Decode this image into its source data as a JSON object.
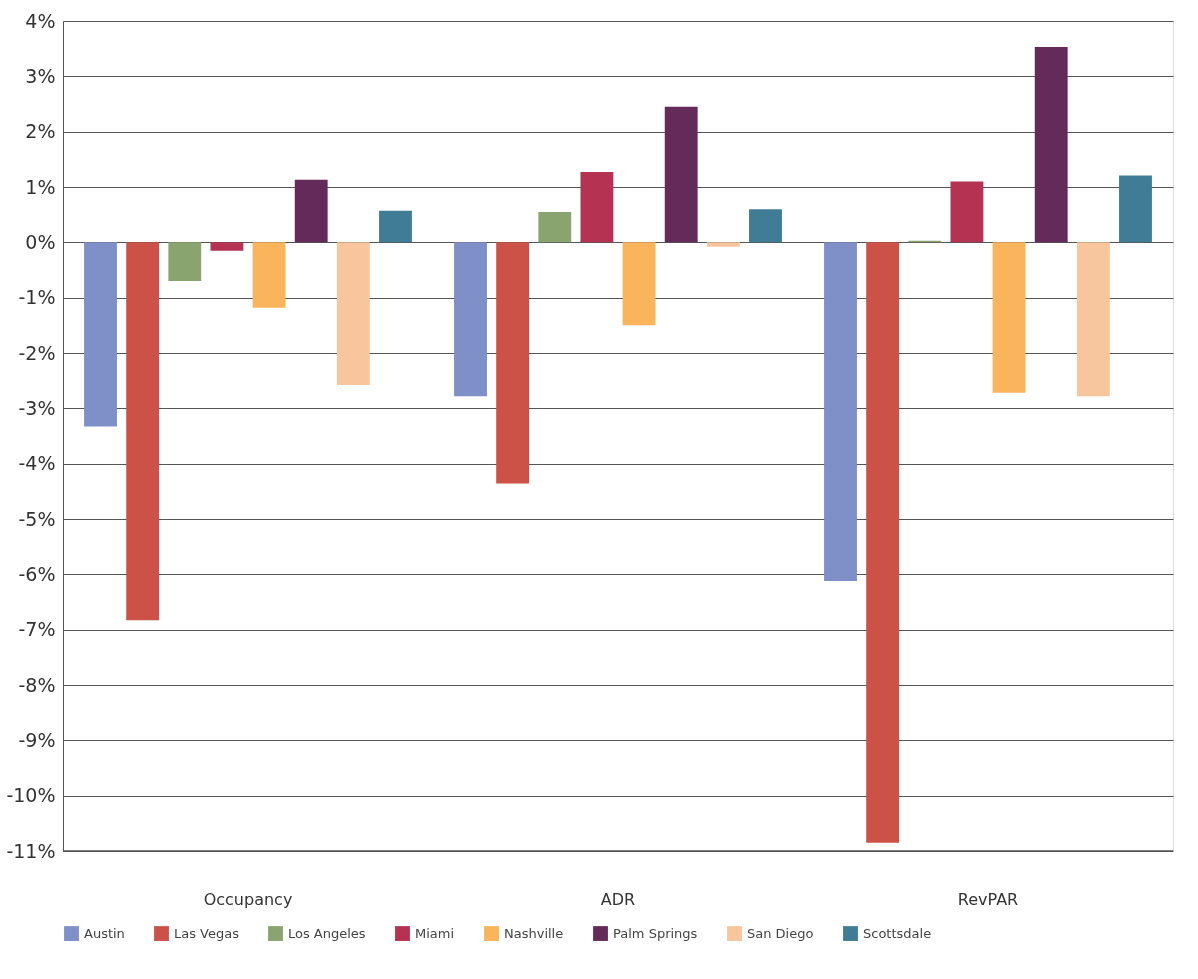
{
  "chart_data": {
    "type": "bar",
    "categories": [
      "Occupancy",
      "ADR",
      "RevPAR"
    ],
    "series": [
      {
        "name": "Austin",
        "color": "#7f8fc7",
        "values": [
          -3.33,
          -2.78,
          -6.12
        ]
      },
      {
        "name": "Las Vegas",
        "color": "#cc5147",
        "values": [
          -6.83,
          -4.36,
          -10.85
        ]
      },
      {
        "name": "Los Angeles",
        "color": "#8aa46f",
        "values": [
          -0.7,
          0.55,
          0.03
        ]
      },
      {
        "name": "Miami",
        "color": "#b53253",
        "values": [
          -0.15,
          1.27,
          1.1
        ]
      },
      {
        "name": "Nashville",
        "color": "#f9b45c",
        "values": [
          -1.18,
          -1.5,
          -2.72
        ]
      },
      {
        "name": "Palm Springs",
        "color": "#642a5a",
        "values": [
          1.13,
          2.45,
          3.53
        ]
      },
      {
        "name": "San Diego",
        "color": "#f8c69c",
        "values": [
          -2.58,
          -0.08,
          -2.78
        ]
      },
      {
        "name": "Scottsdale",
        "color": "#417c97",
        "values": [
          0.57,
          0.6,
          1.21
        ]
      }
    ],
    "ylim": [
      -11,
      4
    ],
    "yticks": [
      {
        "value": 4,
        "label": "4%"
      },
      {
        "value": 3,
        "label": "3%"
      },
      {
        "value": 2,
        "label": "2%"
      },
      {
        "value": 1,
        "label": "1%"
      },
      {
        "value": 0,
        "label": "0%"
      },
      {
        "value": -1,
        "label": "-1%"
      },
      {
        "value": -2,
        "label": "-2%"
      },
      {
        "value": -3,
        "label": "-3%"
      },
      {
        "value": -4,
        "label": "-4%"
      },
      {
        "value": -5,
        "label": "-5%"
      },
      {
        "value": -6,
        "label": "-6%"
      },
      {
        "value": -7,
        "label": "-7%"
      },
      {
        "value": -8,
        "label": "-8%"
      },
      {
        "value": -9,
        "label": "-9%"
      },
      {
        "value": -10,
        "label": "-10%"
      },
      {
        "value": -11,
        "label": "-11%"
      }
    ],
    "grid": "y",
    "legend": "bottom"
  }
}
